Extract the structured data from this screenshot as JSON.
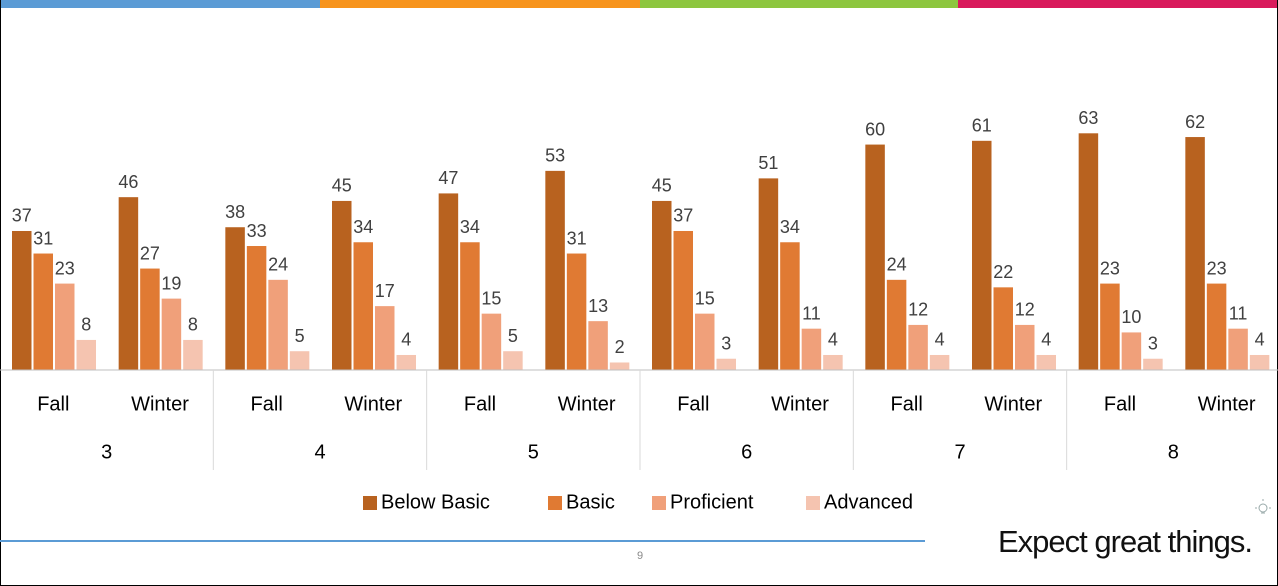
{
  "chart_data": {
    "type": "bar",
    "categories": [
      "Fall",
      "Winter",
      "Fall",
      "Winter",
      "Fall",
      "Winter",
      "Fall",
      "Winter",
      "Fall",
      "Winter",
      "Fall",
      "Winter"
    ],
    "groups": [
      "3",
      "4",
      "5",
      "6",
      "7",
      "8"
    ],
    "series": [
      {
        "name": "Below Basic",
        "color": "#b8621f",
        "values": [
          37,
          46,
          38,
          45,
          47,
          53,
          45,
          51,
          60,
          61,
          63,
          62
        ]
      },
      {
        "name": "Basic",
        "color": "#e07a33",
        "values": [
          31,
          27,
          33,
          34,
          34,
          31,
          37,
          34,
          24,
          22,
          23,
          23
        ]
      },
      {
        "name": "Proficient",
        "color": "#f0a07a",
        "values": [
          23,
          19,
          24,
          17,
          15,
          13,
          15,
          11,
          12,
          12,
          10,
          11
        ]
      },
      {
        "name": "Advanced",
        "color": "#f5c4b0",
        "values": [
          8,
          8,
          5,
          4,
          5,
          2,
          3,
          4,
          4,
          4,
          3,
          4
        ]
      }
    ],
    "ylim": [
      0,
      70
    ],
    "legend": "bottom"
  },
  "footer": {
    "page_number": "9",
    "tagline": "Expect great things."
  }
}
